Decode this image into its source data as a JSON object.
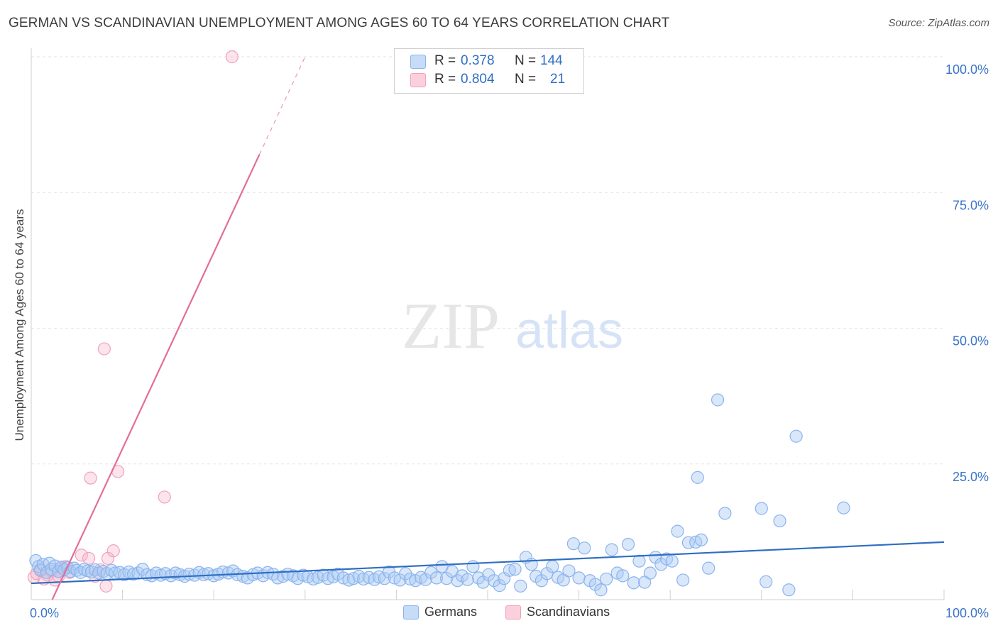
{
  "title": "GERMAN VS SCANDINAVIAN UNEMPLOYMENT AMONG AGES 60 TO 64 YEARS CORRELATION CHART",
  "source": "Source: ZipAtlas.com",
  "watermark": {
    "zip": "ZIP",
    "atlas": "atlas"
  },
  "legend": {
    "r_label": "R =",
    "n_label": "N =",
    "rows": [
      {
        "series": "Germans",
        "r": "0.378",
        "n": "144",
        "color": "#8ab4f0",
        "fill": "#c6dcf7"
      },
      {
        "series": "Scandinavians",
        "r": "0.804",
        "n": "21",
        "color": "#f3a1b9",
        "fill": "#fbd0dd"
      }
    ]
  },
  "bottom_legend": {
    "germans": "Germans",
    "scandinavians": "Scandinavians"
  },
  "chart_data": {
    "type": "scatter",
    "title": "GERMAN VS SCANDINAVIAN UNEMPLOYMENT AMONG AGES 60 TO 64 YEARS CORRELATION CHART",
    "xlabel": "",
    "ylabel": "Unemployment Among Ages 60 to 64 years",
    "xlim": [
      0,
      100
    ],
    "ylim": [
      0,
      100
    ],
    "x_tick_labels": [
      {
        "value": 0,
        "label": "0.0%"
      },
      {
        "value": 100,
        "label": "100.0%"
      }
    ],
    "y_tick_labels": [
      {
        "value": 100,
        "label": "100.0%"
      },
      {
        "value": 75,
        "label": "75.0%"
      },
      {
        "value": 50,
        "label": "50.0%"
      },
      {
        "value": 25,
        "label": "25.0%"
      }
    ],
    "grid": true,
    "series": [
      {
        "name": "Germans",
        "color": "#8ab4f0",
        "line_color": "#2f6ec2",
        "trend": {
          "x0": 0,
          "y0": 3.0,
          "x1": 100,
          "y1": 10.6
        },
        "points": [
          [
            0.5,
            7.2
          ],
          [
            0.8,
            6.1
          ],
          [
            1.0,
            5.4
          ],
          [
            1.3,
            6.5
          ],
          [
            1.7,
            5.0
          ],
          [
            2.0,
            6.7
          ],
          [
            2.2,
            5.6
          ],
          [
            2.6,
            6.2
          ],
          [
            3.0,
            5.2
          ],
          [
            3.3,
            6.0
          ],
          [
            3.6,
            5.5
          ],
          [
            4.0,
            5.9
          ],
          [
            4.3,
            5.2
          ],
          [
            4.7,
            5.8
          ],
          [
            5.0,
            5.4
          ],
          [
            5.4,
            5.0
          ],
          [
            5.8,
            5.6
          ],
          [
            6.2,
            5.3
          ],
          [
            6.6,
            5.1
          ],
          [
            7.0,
            5.5
          ],
          [
            7.4,
            4.9
          ],
          [
            7.9,
            5.2
          ],
          [
            8.3,
            4.8
          ],
          [
            8.8,
            5.4
          ],
          [
            9.2,
            4.9
          ],
          [
            9.7,
            5.0
          ],
          [
            10.2,
            4.6
          ],
          [
            10.7,
            5.1
          ],
          [
            11.2,
            4.7
          ],
          [
            11.7,
            4.9
          ],
          [
            12.2,
            5.6
          ],
          [
            12.7,
            4.6
          ],
          [
            13.2,
            4.4
          ],
          [
            13.7,
            4.9
          ],
          [
            14.2,
            4.5
          ],
          [
            14.7,
            4.8
          ],
          [
            15.3,
            4.4
          ],
          [
            15.8,
            4.9
          ],
          [
            16.3,
            4.6
          ],
          [
            16.8,
            4.3
          ],
          [
            17.3,
            4.7
          ],
          [
            17.9,
            4.5
          ],
          [
            18.4,
            5.0
          ],
          [
            18.9,
            4.6
          ],
          [
            19.4,
            4.8
          ],
          [
            20.0,
            4.4
          ],
          [
            20.5,
            4.7
          ],
          [
            21.0,
            5.1
          ],
          [
            21.6,
            4.9
          ],
          [
            22.1,
            5.3
          ],
          [
            22.6,
            4.6
          ],
          [
            23.2,
            4.3
          ],
          [
            23.7,
            4.0
          ],
          [
            24.3,
            4.6
          ],
          [
            24.8,
            4.9
          ],
          [
            25.4,
            4.4
          ],
          [
            25.9,
            5.0
          ],
          [
            26.5,
            4.7
          ],
          [
            27.0,
            4.0
          ],
          [
            27.6,
            4.3
          ],
          [
            28.1,
            4.7
          ],
          [
            28.7,
            4.4
          ],
          [
            29.2,
            3.9
          ],
          [
            29.8,
            4.5
          ],
          [
            30.3,
            4.2
          ],
          [
            30.9,
            3.8
          ],
          [
            31.4,
            4.1
          ],
          [
            32.0,
            4.5
          ],
          [
            32.5,
            3.9
          ],
          [
            33.1,
            4.2
          ],
          [
            33.6,
            4.7
          ],
          [
            34.2,
            4.0
          ],
          [
            34.8,
            3.6
          ],
          [
            35.3,
            3.9
          ],
          [
            35.9,
            4.3
          ],
          [
            36.4,
            3.8
          ],
          [
            37.0,
            4.1
          ],
          [
            37.6,
            3.7
          ],
          [
            38.1,
            4.2
          ],
          [
            38.7,
            3.9
          ],
          [
            39.2,
            5.1
          ],
          [
            39.8,
            4.0
          ],
          [
            40.4,
            3.6
          ],
          [
            41.0,
            4.8
          ],
          [
            41.5,
            3.8
          ],
          [
            42.1,
            3.5
          ],
          [
            42.7,
            4.1
          ],
          [
            43.2,
            3.7
          ],
          [
            43.8,
            5.0
          ],
          [
            44.4,
            4.0
          ],
          [
            45.0,
            6.1
          ],
          [
            45.5,
            3.9
          ],
          [
            46.1,
            5.2
          ],
          [
            46.7,
            3.5
          ],
          [
            47.2,
            4.4
          ],
          [
            47.8,
            3.7
          ],
          [
            48.4,
            6.1
          ],
          [
            49.0,
            4.0
          ],
          [
            49.5,
            3.2
          ],
          [
            50.1,
            4.6
          ],
          [
            50.7,
            3.5
          ],
          [
            51.3,
            2.6
          ],
          [
            51.8,
            3.9
          ],
          [
            52.4,
            5.4
          ],
          [
            53.0,
            5.6
          ],
          [
            53.6,
            2.5
          ],
          [
            54.2,
            7.8
          ],
          [
            54.8,
            6.5
          ],
          [
            55.3,
            4.3
          ],
          [
            55.9,
            3.5
          ],
          [
            56.5,
            4.8
          ],
          [
            57.1,
            6.1
          ],
          [
            57.7,
            4.1
          ],
          [
            58.3,
            3.6
          ],
          [
            58.9,
            5.3
          ],
          [
            59.4,
            10.3
          ],
          [
            60.0,
            4.0
          ],
          [
            60.6,
            9.5
          ],
          [
            61.2,
            3.5
          ],
          [
            61.8,
            2.8
          ],
          [
            62.4,
            1.8
          ],
          [
            63.0,
            3.8
          ],
          [
            63.6,
            9.2
          ],
          [
            64.2,
            4.9
          ],
          [
            64.8,
            4.4
          ],
          [
            65.4,
            10.2
          ],
          [
            66.0,
            3.1
          ],
          [
            66.6,
            7.1
          ],
          [
            67.2,
            3.2
          ],
          [
            67.8,
            4.9
          ],
          [
            68.4,
            7.8
          ],
          [
            69.0,
            6.5
          ],
          [
            69.6,
            7.5
          ],
          [
            70.2,
            7.1
          ],
          [
            70.8,
            12.6
          ],
          [
            71.4,
            3.6
          ],
          [
            72.0,
            10.5
          ],
          [
            72.8,
            10.6
          ],
          [
            73.4,
            11.0
          ],
          [
            74.2,
            5.8
          ],
          [
            75.2,
            36.8
          ],
          [
            76.0,
            15.9
          ],
          [
            73.0,
            22.5
          ],
          [
            80.0,
            16.8
          ],
          [
            82.0,
            14.5
          ],
          [
            83.8,
            30.1
          ],
          [
            89.0,
            16.9
          ],
          [
            80.5,
            3.3
          ],
          [
            83.0,
            1.8
          ]
        ]
      },
      {
        "name": "Scandinavians",
        "color": "#f3a1b9",
        "line_color": "#e36d98",
        "trend": {
          "x0": 2.3,
          "y0": 0,
          "x1": 25,
          "y1": 82
        },
        "trend_dashed": {
          "x0": 25,
          "y0": 82,
          "x1": 30,
          "y1": 100
        },
        "points": [
          [
            0.3,
            4.1
          ],
          [
            0.6,
            4.8
          ],
          [
            1.0,
            5.6
          ],
          [
            1.4,
            3.8
          ],
          [
            1.8,
            4.5
          ],
          [
            2.2,
            5.2
          ],
          [
            2.6,
            3.6
          ],
          [
            3.0,
            4.3
          ],
          [
            3.4,
            5.8
          ],
          [
            3.8,
            6.1
          ],
          [
            4.2,
            5.0
          ],
          [
            5.5,
            8.2
          ],
          [
            6.3,
            7.6
          ],
          [
            7.0,
            4.3
          ],
          [
            7.6,
            5.5
          ],
          [
            8.4,
            7.6
          ],
          [
            8.2,
            2.5
          ],
          [
            9.0,
            9.0
          ],
          [
            6.5,
            22.4
          ],
          [
            9.5,
            23.6
          ],
          [
            14.6,
            18.9
          ],
          [
            8.0,
            46.2
          ],
          [
            22.0,
            100.0
          ]
        ]
      }
    ]
  }
}
